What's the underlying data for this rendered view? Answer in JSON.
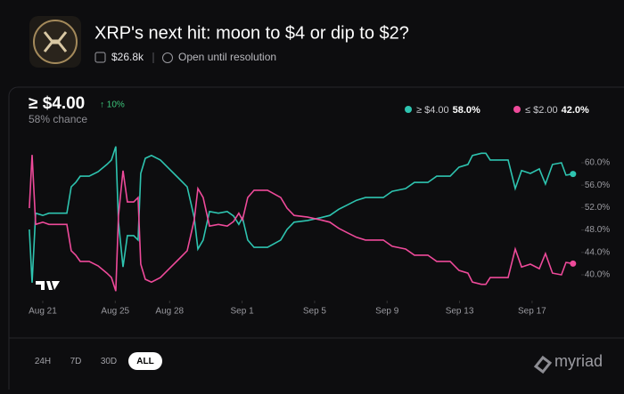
{
  "header": {
    "title": "XRP's next hit: moon to $4 or dip to $2?",
    "volume": "$26.8k",
    "status": "Open until resolution"
  },
  "current": {
    "label": "≥ $4.00",
    "change": "↑ 10%",
    "chance": "58% chance"
  },
  "ranges": [
    "24H",
    "7D",
    "30D",
    "ALL"
  ],
  "brand": "myriad",
  "chart_data": {
    "type": "line",
    "grid": false,
    "x": [
      -0.74,
      -0.59,
      -0.39,
      0,
      0.34,
      0.69,
      1.33,
      1.57,
      1.82,
      2.07,
      2.56,
      3.05,
      3.54,
      3.79,
      4.03,
      4.18,
      4.43,
      4.67,
      5.02,
      5.26,
      5.41,
      5.66,
      6,
      6.49,
      6.98,
      7.48,
      7.97,
      8.36,
      8.56,
      8.85,
      9.2,
      9.69,
      10.18,
      10.53,
      10.82,
      11.02,
      11.31,
      11.66,
      12.4,
      13.13,
      13.48,
      13.87,
      14.61,
      15.35,
      15.84,
      16.33,
      16.82,
      17.31,
      17.81,
      18.79,
      19.28,
      20.02,
      20.51,
      21.25,
      21.74,
      22.48,
      22.97,
      23.46,
      23.71,
      24.2,
      24.45,
      24.69,
      25.68,
      26.07,
      26.42,
      26.91,
      27.4,
      27.74,
      28.13,
      28.62,
      28.87,
      29.26
    ],
    "series": [
      {
        "name": "≥ $4.00",
        "color": "#2ec4b0",
        "last_label": "58.0%",
        "values": [
          48.1,
          38.6,
          51,
          50.6,
          51,
          51,
          51,
          55.7,
          56.5,
          57.6,
          57.6,
          58.4,
          59.7,
          60.5,
          62.9,
          49.4,
          41.4,
          47,
          47,
          46.2,
          58.1,
          60.8,
          61.3,
          60.5,
          58.9,
          57.3,
          55.7,
          50.2,
          44.6,
          46.2,
          51.3,
          51,
          51.3,
          50.5,
          49,
          50.2,
          46.2,
          44.9,
          44.9,
          46.2,
          48.1,
          49.4,
          49.7,
          50.2,
          50.6,
          51.7,
          52.5,
          53.3,
          53.8,
          53.8,
          54.9,
          55.4,
          56.5,
          56.5,
          57.6,
          57.6,
          59.2,
          59.7,
          61.3,
          61.7,
          61.7,
          60.5,
          60.5,
          55.4,
          58.6,
          58.1,
          58.9,
          56.2,
          59.7,
          60,
          57.8,
          58
        ]
      },
      {
        "name": "≤ $2.00",
        "color": "#ee4a9a",
        "last_label": "42.0%",
        "values": [
          51.9,
          61.4,
          49,
          49.4,
          49,
          49,
          49,
          44.3,
          43.5,
          42.4,
          42.4,
          41.6,
          40.3,
          39.5,
          37.1,
          50.6,
          58.6,
          53,
          53,
          53.8,
          41.9,
          39.2,
          38.7,
          39.5,
          41.1,
          42.7,
          44.3,
          49.8,
          55.4,
          53.8,
          48.7,
          49,
          48.7,
          49.5,
          51,
          49.8,
          53.8,
          55.1,
          55.1,
          53.8,
          51.9,
          50.6,
          50.3,
          49.8,
          49.4,
          48.3,
          47.5,
          46.7,
          46.2,
          46.2,
          45.1,
          44.6,
          43.5,
          43.5,
          42.4,
          42.4,
          40.8,
          40.3,
          38.7,
          38.3,
          38.3,
          39.5,
          39.5,
          44.6,
          41.4,
          41.9,
          41.1,
          43.8,
          40.3,
          40,
          42.2,
          42
        ]
      }
    ],
    "xlim": [
      -0.8,
      29.5
    ],
    "xticks": [
      {
        "value": 0,
        "label": "Aug 21"
      },
      {
        "value": 4,
        "label": "Aug 25"
      },
      {
        "value": 7,
        "label": "Aug 28"
      },
      {
        "value": 11,
        "label": "Sep 1"
      },
      {
        "value": 15,
        "label": "Sep 5"
      },
      {
        "value": 19,
        "label": "Sep 9"
      },
      {
        "value": 23,
        "label": "Sep 13"
      },
      {
        "value": 27,
        "label": "Sep 17"
      }
    ],
    "ylim": [
      36,
      64
    ],
    "yticks": [
      {
        "value": 40,
        "label": "40.0%"
      },
      {
        "value": 44,
        "label": "44.0%"
      },
      {
        "value": 48,
        "label": "48.0%"
      },
      {
        "value": 52,
        "label": "52.0%"
      },
      {
        "value": 56,
        "label": "56.0%"
      },
      {
        "value": 60,
        "label": "60.0%"
      }
    ]
  }
}
